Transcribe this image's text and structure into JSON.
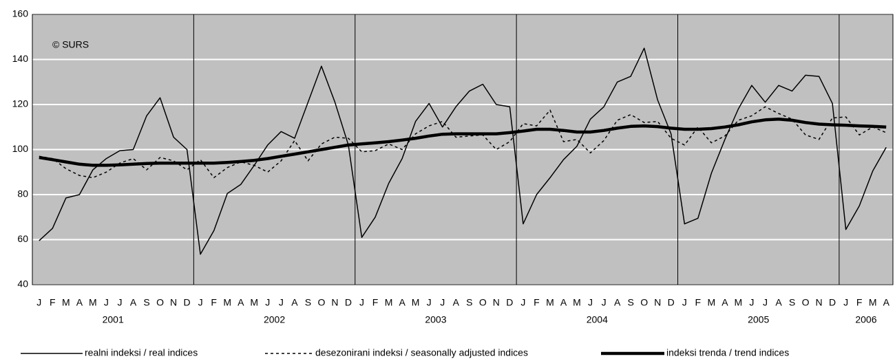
{
  "chart_data": {
    "type": "line",
    "annotation": "© SURS",
    "categories": [
      "J",
      "F",
      "M",
      "A",
      "M",
      "J",
      "J",
      "A",
      "S",
      "O",
      "N",
      "D",
      "J",
      "F",
      "M",
      "A",
      "M",
      "J",
      "J",
      "A",
      "S",
      "O",
      "N",
      "D",
      "J",
      "F",
      "M",
      "A",
      "M",
      "J",
      "J",
      "A",
      "S",
      "O",
      "N",
      "D",
      "J",
      "F",
      "M",
      "A",
      "M",
      "J",
      "J",
      "A",
      "S",
      "O",
      "N",
      "D",
      "J",
      "F",
      "M",
      "A",
      "M",
      "J",
      "J",
      "A",
      "S",
      "O",
      "N",
      "D",
      "J",
      "F",
      "M",
      "A"
    ],
    "years": [
      "2001",
      "2002",
      "2003",
      "2004",
      "2005",
      "2006"
    ],
    "series": [
      {
        "name": "realni indeksi / real indices",
        "color": "#000000",
        "width": 1.5,
        "dash": "none",
        "values": [
          59.5,
          65,
          78.5,
          80,
          91,
          96,
          99.5,
          100,
          115,
          123,
          105.5,
          100,
          53.5,
          64,
          80.5,
          84.5,
          93,
          102,
          108,
          105,
          121,
          137,
          121,
          102,
          61,
          70,
          85,
          96,
          112.5,
          120.5,
          110,
          119,
          126,
          129,
          120,
          119,
          67,
          80,
          87.5,
          95.5,
          101.5,
          113.5,
          119,
          130,
          132.5,
          145,
          122,
          107,
          67,
          69.5,
          89.5,
          104.5,
          118,
          128.5,
          121,
          128.5,
          126,
          133,
          132.5,
          120.5,
          64.5,
          75,
          90.5,
          101
        ]
      },
      {
        "name": "desezonirani indeksi / seasonally adjusted indices",
        "color": "#000000",
        "width": 1.5,
        "dash": "4 4",
        "values": [
          97,
          96,
          91.5,
          88.5,
          87.5,
          90,
          94,
          96,
          91,
          96.5,
          95,
          91,
          95.5,
          87.5,
          92,
          94.5,
          93,
          90,
          95,
          104,
          95,
          102.5,
          105.5,
          105,
          99,
          99.5,
          102.5,
          100,
          107,
          110.5,
          112.5,
          105.5,
          106,
          106.5,
          100,
          103.5,
          111.5,
          110.5,
          117.5,
          103.5,
          104.5,
          98.5,
          104,
          113,
          115.5,
          112,
          112.5,
          105,
          102,
          110,
          103,
          106,
          113,
          115,
          119,
          116,
          113.5,
          106.5,
          104.5,
          114,
          114.5,
          106.5,
          110,
          107.5
        ]
      },
      {
        "name": "indeksi trenda / trend indices",
        "color": "#000000",
        "width": 4.5,
        "dash": "none",
        "values": [
          96.5,
          95.5,
          94.5,
          93.5,
          93,
          93,
          93.2,
          93.5,
          93.8,
          94,
          94,
          94,
          94,
          94,
          94.3,
          94.7,
          95.2,
          96,
          97,
          98,
          99,
          100,
          101,
          102,
          102.5,
          103,
          103.5,
          104.2,
          105,
          106,
          106.8,
          107,
          107,
          107,
          107,
          107.5,
          108.2,
          109,
          109,
          108.5,
          107.8,
          107.8,
          108.5,
          109.5,
          110.3,
          110.5,
          110.2,
          109.5,
          109,
          109,
          109.3,
          110,
          111,
          112.3,
          113.2,
          113.5,
          113,
          112,
          111.3,
          111,
          110.8,
          110.5,
          110.3,
          110
        ]
      }
    ],
    "ylim": [
      40,
      160
    ],
    "yticks": [
      40,
      60,
      80,
      100,
      120,
      140,
      160
    ],
    "grid": true,
    "plot_background": "#c0c0c0",
    "grid_color": "#ffffff"
  }
}
